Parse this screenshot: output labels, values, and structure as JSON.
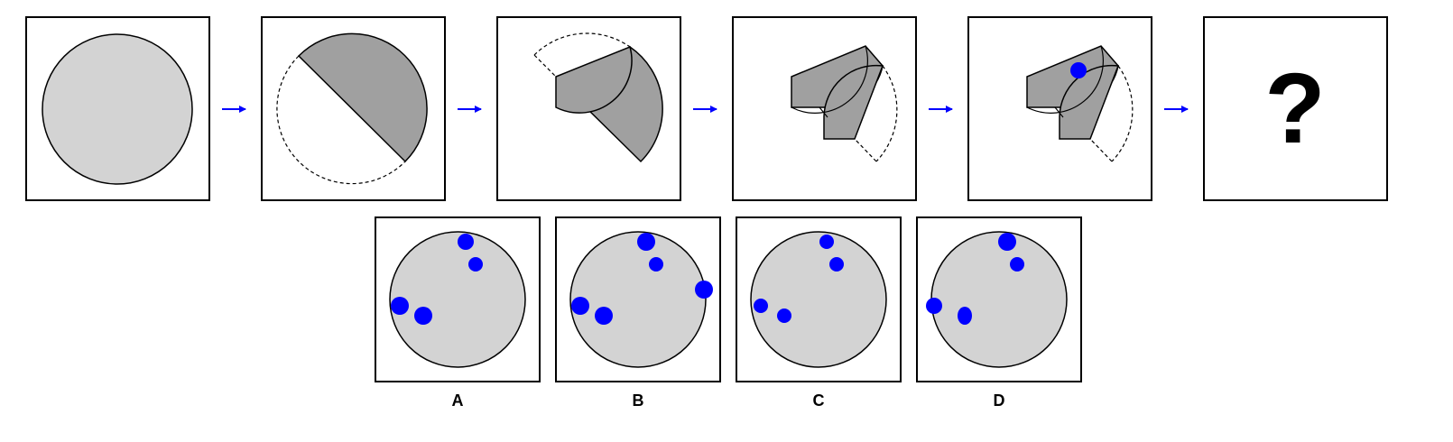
{
  "question": {
    "placeholder": "?"
  },
  "options": [
    {
      "label": "A"
    },
    {
      "label": "B"
    },
    {
      "label": "C"
    },
    {
      "label": "D"
    }
  ],
  "colors": {
    "paper": "#d3d3d3",
    "folded": "#a0a0a0",
    "hole": "#0000ff",
    "arrow": "#0000ff",
    "frame": "#000000"
  }
}
